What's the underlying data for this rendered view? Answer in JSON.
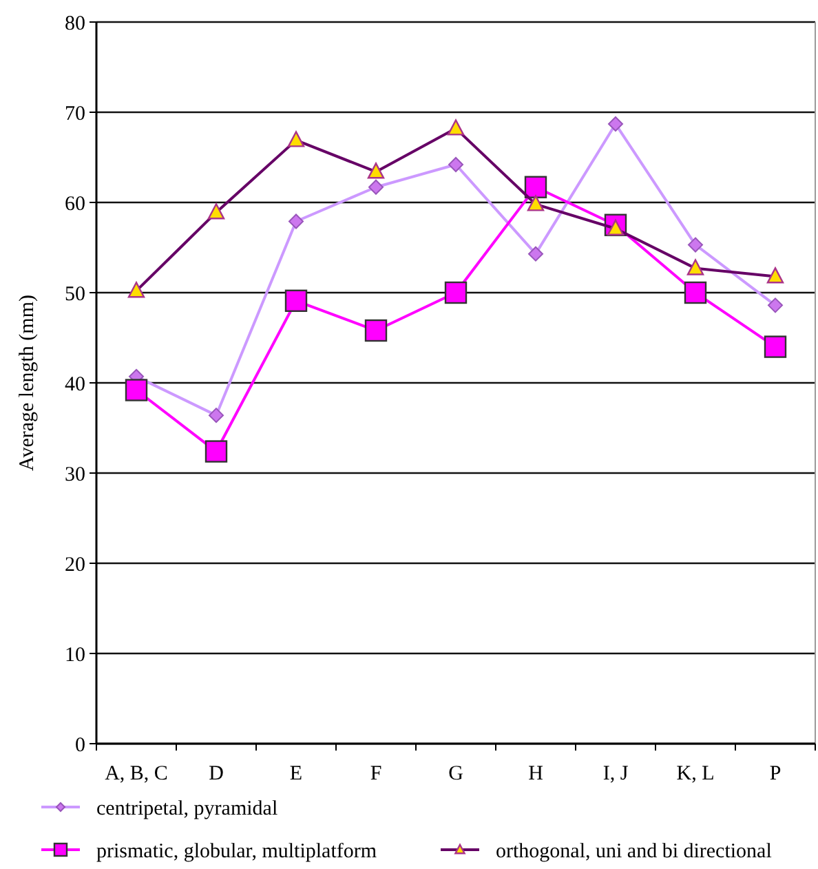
{
  "chart_data": {
    "type": "line",
    "ylabel": "Average length (mm)",
    "categories": [
      "A, B, C",
      "D",
      "E",
      "F",
      "G",
      "H",
      "I, J",
      "K, L",
      "P"
    ],
    "series": [
      {
        "name": "centripetal, pyramidal",
        "color": "#cc99ff",
        "marker": "diamond",
        "values": [
          40.7,
          36.4,
          57.9,
          61.7,
          64.2,
          54.3,
          68.7,
          55.3,
          48.6
        ]
      },
      {
        "name": "prismatic, globular, multiplatform",
        "color": "#ff00ff",
        "marker": "square",
        "values": [
          39.2,
          32.4,
          49.1,
          45.8,
          50.0,
          61.7,
          57.5,
          50.0,
          44.0
        ]
      },
      {
        "name": "orthogonal, uni and bi directional",
        "color": "#660066",
        "marker": "triangle",
        "values": [
          50.2,
          58.9,
          66.9,
          63.4,
          68.2,
          59.8,
          57.1,
          52.7,
          51.8
        ]
      }
    ],
    "ylim": [
      0,
      80
    ],
    "yticks": [
      0,
      10,
      20,
      30,
      40,
      50,
      60,
      70,
      80
    ],
    "grid": "y",
    "legend": "bottom",
    "line_style": "solid"
  }
}
